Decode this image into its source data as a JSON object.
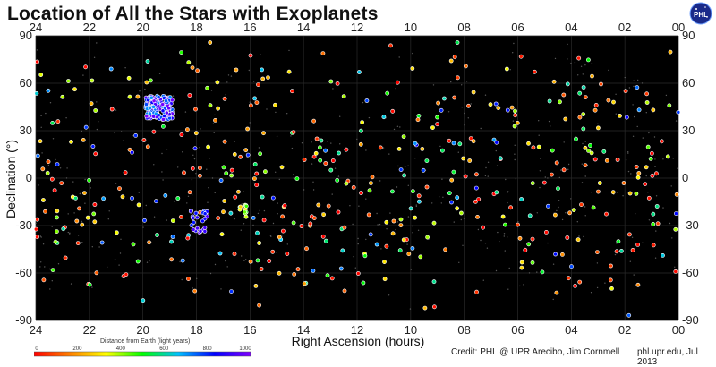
{
  "title": "Location of All the Stars with Exoplanets",
  "logo_text": "PHL",
  "credit": "Credit: PHL @ UPR Arecibo, Jim Cornmell",
  "site": "phl.upr.edu, Jul 2013",
  "colorbar": {
    "title": "Distance from Earth (light years)",
    "ticks": [
      "0",
      "200",
      "400",
      "600",
      "800",
      "1000"
    ],
    "colors": [
      "#ff0000",
      "#ff8000",
      "#ffff00",
      "#00ff00",
      "#00c0ff",
      "#0000ff",
      "#8000ff"
    ]
  },
  "chart_data": {
    "type": "scatter",
    "title": "Location of All the Stars with Exoplanets",
    "xlabel": "Right Ascension (hours)",
    "ylabel": "Declination (°)",
    "xlim": [
      24,
      0
    ],
    "ylim": [
      -90,
      90
    ],
    "x_ticks": [
      "24",
      "22",
      "20",
      "18",
      "16",
      "14",
      "12",
      "10",
      "08",
      "06",
      "04",
      "02",
      "00"
    ],
    "y_ticks": [
      "90",
      "60",
      "30",
      "0",
      "-30",
      "-60",
      "-90"
    ],
    "grid": true,
    "background": "#000000",
    "notable_clusters": [
      {
        "ra_range": [
          18.9,
          19.9
        ],
        "dec_range": [
          37,
          52
        ],
        "distance_ly": "700-1000",
        "count_approx": 160
      },
      {
        "ra_range": [
          17.6,
          18.3
        ],
        "dec_range": [
          -37,
          -20
        ],
        "distance_ly": "800-1000",
        "count_approx": 25
      },
      {
        "ra_range": [
          16.1,
          16.4
        ],
        "dec_range": [
          -25,
          -17
        ],
        "distance_ly": "200-500",
        "count_approx": 12
      }
    ]
  }
}
